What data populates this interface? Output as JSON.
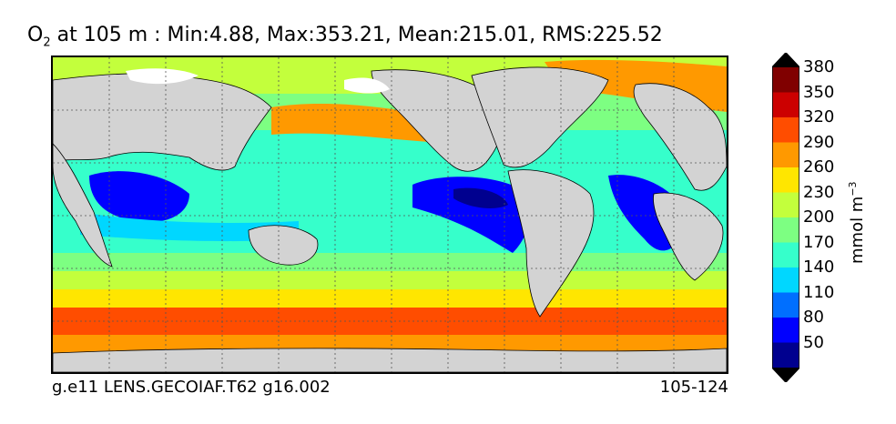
{
  "title": {
    "var_main": "O",
    "var_sub": "2",
    "rest": " at 105 m : Min:4.88, Max:353.21, Mean:215.01, RMS:225.52"
  },
  "footer": {
    "left": "g.e11 LENS.GECOIAF.T62 g16.002",
    "right": "105-124"
  },
  "colorbar": {
    "unit_main": "mmol m",
    "unit_exp": "−3",
    "ticks": [
      "50",
      "80",
      "110",
      "140",
      "170",
      "200",
      "230",
      "260",
      "290",
      "320",
      "350",
      "380"
    ],
    "levels": [
      {
        "color": "#00008f"
      },
      {
        "color": "#0000ff"
      },
      {
        "color": "#006fff"
      },
      {
        "color": "#00d7ff"
      },
      {
        "color": "#36ffcb"
      },
      {
        "color": "#7dff82"
      },
      {
        "color": "#c3ff3c"
      },
      {
        "color": "#ffe600"
      },
      {
        "color": "#ff9900"
      },
      {
        "color": "#ff4d00"
      },
      {
        "color": "#cc0000"
      },
      {
        "color": "#800000"
      }
    ]
  },
  "colors": {
    "land": "#d3d3d3",
    "ice": "#ffffff",
    "grid": "#555555"
  }
}
